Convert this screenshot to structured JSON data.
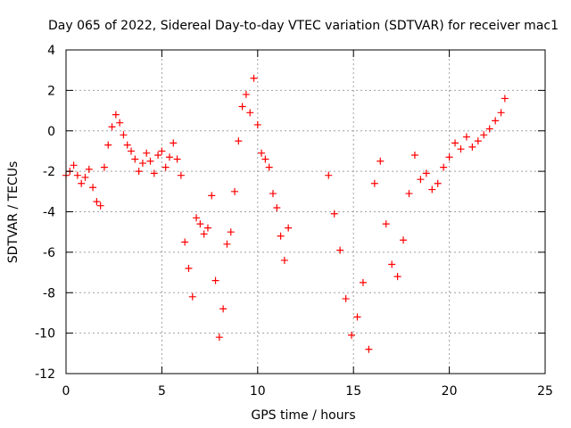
{
  "chart_data": {
    "type": "scatter",
    "title": "Day 065 of 2022, Sidereal Day-to-day VTEC variation (SDTVAR) for receiver mac1",
    "xlabel": "GPS time / hours",
    "ylabel": "SDTVAR / TECUs",
    "xlim": [
      0,
      25
    ],
    "ylim": [
      -12,
      4
    ],
    "xticks": [
      0,
      5,
      10,
      15,
      20,
      25
    ],
    "yticks": [
      -12,
      -10,
      -8,
      -6,
      -4,
      -2,
      0,
      2,
      4
    ],
    "grid": true,
    "marker": "+",
    "color": "#ff0000",
    "series": [
      {
        "name": "SDTVAR",
        "x": [
          0.0,
          0.2,
          0.4,
          0.6,
          0.8,
          1.0,
          1.2,
          1.4,
          1.6,
          1.8,
          2.0,
          2.2,
          2.4,
          2.6,
          2.8,
          3.0,
          3.2,
          3.4,
          3.6,
          3.8,
          4.0,
          4.2,
          4.4,
          4.6,
          4.8,
          5.0,
          5.2,
          5.4,
          5.6,
          5.8,
          6.0,
          6.2,
          6.4,
          6.6,
          6.8,
          7.0,
          7.2,
          7.4,
          7.6,
          7.8,
          8.0,
          8.2,
          8.4,
          8.6,
          8.8,
          9.0,
          9.2,
          9.4,
          9.6,
          9.8,
          10.0,
          10.2,
          10.4,
          10.6,
          10.8,
          11.0,
          11.2,
          11.4,
          11.6,
          13.7,
          14.0,
          14.3,
          14.6,
          14.9,
          15.2,
          15.5,
          15.8,
          16.1,
          16.4,
          16.7,
          17.0,
          17.3,
          17.6,
          17.9,
          18.2,
          18.5,
          18.8,
          19.1,
          19.4,
          19.7,
          20.0,
          20.3,
          20.6,
          20.9,
          21.2,
          21.5,
          21.8,
          22.1,
          22.4,
          22.7,
          22.9
        ],
        "y": [
          -2.2,
          -2.0,
          -1.7,
          -2.2,
          -2.6,
          -2.3,
          -1.9,
          -2.8,
          -3.5,
          -3.7,
          -1.8,
          -0.7,
          0.2,
          0.8,
          0.4,
          -0.2,
          -0.7,
          -1.0,
          -1.4,
          -2.0,
          -1.6,
          -1.1,
          -1.5,
          -2.1,
          -1.2,
          -1.0,
          -1.8,
          -1.3,
          -0.6,
          -1.4,
          -2.2,
          -5.5,
          -6.8,
          -8.2,
          -4.3,
          -4.6,
          -5.1,
          -4.8,
          -3.2,
          -7.4,
          -10.2,
          -8.8,
          -5.6,
          -5.0,
          -3.0,
          -0.5,
          1.2,
          1.8,
          0.9,
          2.6,
          0.3,
          -1.1,
          -1.4,
          -1.8,
          -3.1,
          -3.8,
          -5.2,
          -6.4,
          -4.8,
          -2.2,
          -4.1,
          -5.9,
          -8.3,
          -10.1,
          -9.2,
          -7.5,
          -10.8,
          -2.6,
          -1.5,
          -4.6,
          -6.6,
          -7.2,
          -5.4,
          -3.1,
          -1.2,
          -2.4,
          -2.1,
          -2.9,
          -2.6,
          -1.8,
          -1.3,
          -0.6,
          -0.9,
          -0.3,
          -0.8,
          -0.5,
          -0.2,
          0.1,
          0.5,
          0.9,
          1.6
        ]
      }
    ]
  }
}
